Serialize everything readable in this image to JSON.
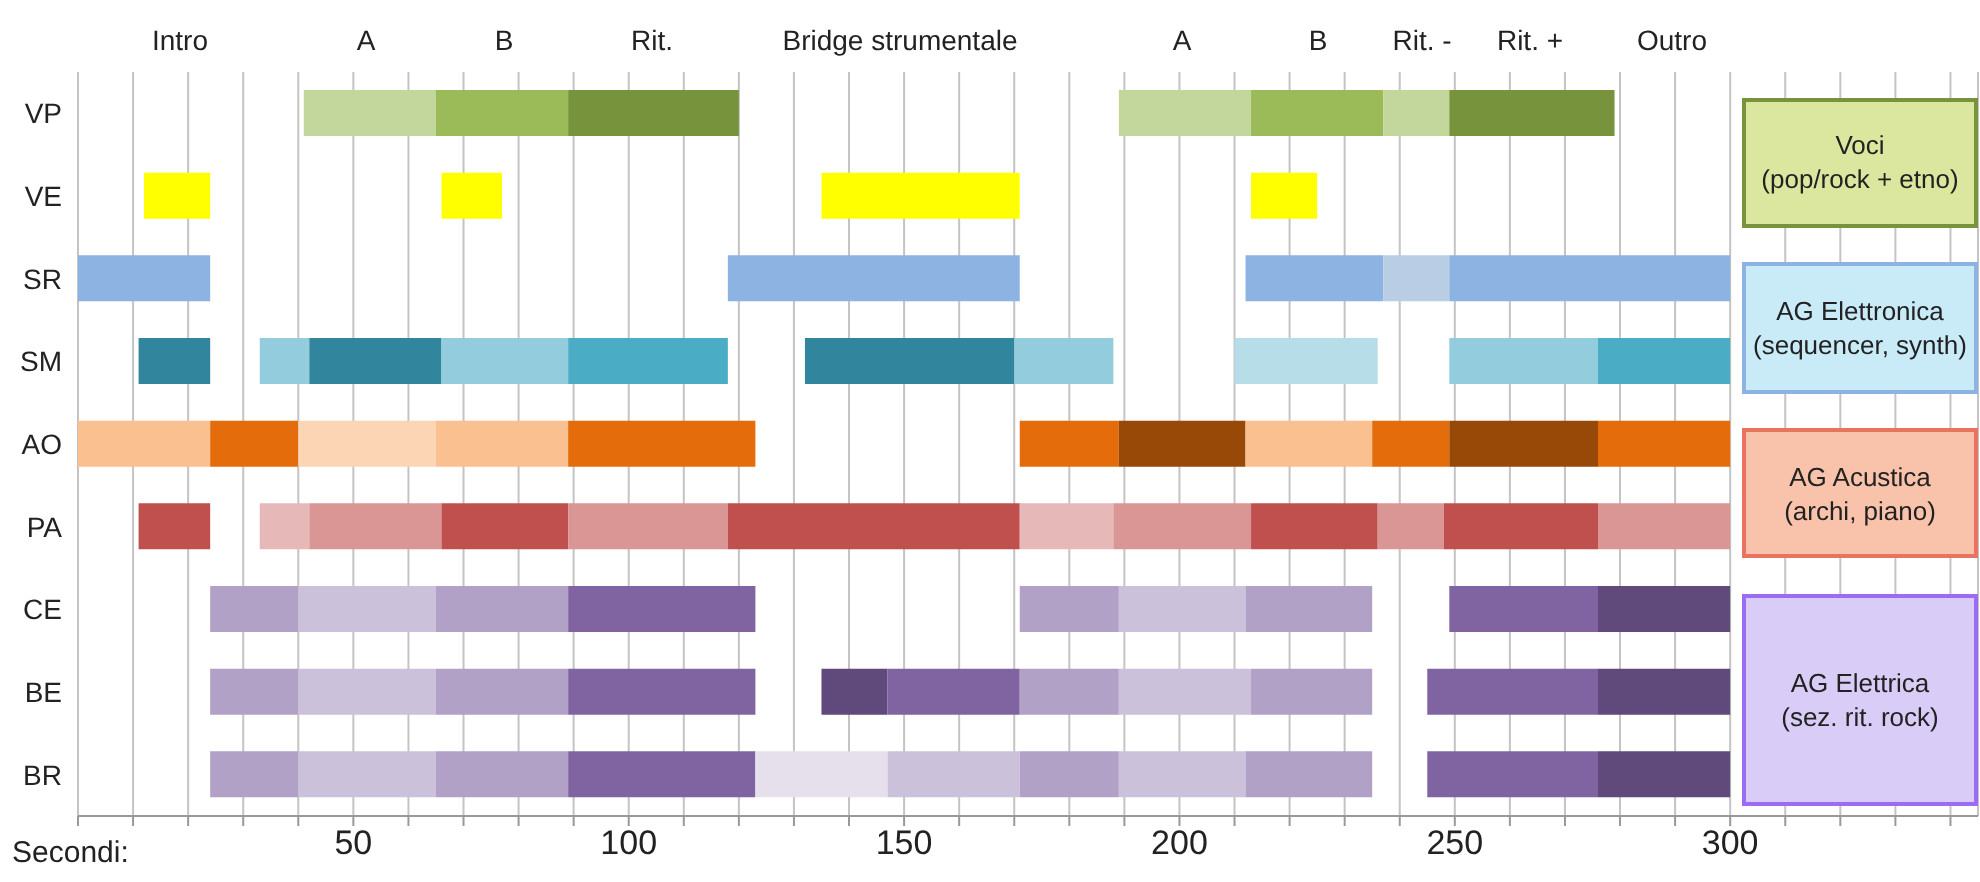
{
  "chart_data": {
    "type": "bar",
    "orientation": "horizontal",
    "xlabel": "Secondi:",
    "categories": [
      "VP",
      "VE",
      "SR",
      "SM",
      "AO",
      "PA",
      "CE",
      "BE",
      "BR"
    ],
    "series": [
      {
        "base": [
          41,
          12,
          0,
          11,
          0,
          11,
          24,
          24,
          24
        ],
        "values": [
          24,
          12,
          24,
          13,
          24,
          13,
          16,
          16,
          16
        ],
        "colors": [
          "#c3d69b",
          "#ffff00",
          "#8db3e2",
          "#31859c",
          "#fac090",
          "#c0504d",
          "#b2a1c7",
          "#b2a1c7",
          "#b2a1c7"
        ]
      },
      {
        "base": [
          65,
          66,
          118,
          33,
          24,
          33,
          40,
          40,
          40
        ],
        "values": [
          24,
          11,
          53,
          9,
          16,
          9,
          25,
          25,
          25
        ],
        "colors": [
          "#9bbb59",
          "#ffff00",
          "#8db3e2",
          "#93cddd",
          "#e46c0a",
          "#e6b9b8",
          "#ccc1da",
          "#ccc1da",
          "#ccc1da"
        ]
      },
      {
        "base": [
          89,
          135,
          212,
          42,
          40,
          42,
          65,
          65,
          65
        ],
        "values": [
          31,
          36,
          25,
          24,
          25,
          24,
          24,
          24,
          24
        ],
        "colors": [
          "#77933c",
          "#ffff00",
          "#8db3e2",
          "#31859c",
          "#fcd5b5",
          "#d99694",
          "#b2a1c7",
          "#b2a1c7",
          "#b2a1c7"
        ]
      },
      {
        "base": [
          189,
          213,
          237,
          66,
          65,
          66,
          89,
          89,
          89
        ],
        "values": [
          24,
          12,
          12,
          23,
          24,
          23,
          34,
          34,
          34
        ],
        "colors": [
          "#c3d69b",
          "#ffff00",
          "#b9cde5",
          "#93cddd",
          "#fac090",
          "#c0504d",
          "#8064a2",
          "#8064a2",
          "#8064a2"
        ]
      },
      {
        "base": [
          213,
          null,
          249,
          89,
          89,
          89,
          171,
          135,
          123
        ],
        "values": [
          24,
          null,
          51,
          29,
          34,
          29,
          18,
          12,
          24
        ],
        "colors": [
          "#9bbb59",
          null,
          "#8db3e2",
          "#4bacc6",
          "#e46c0a",
          "#d99694",
          "#b2a1c7",
          "#604a7b",
          "#e5e0ec"
        ]
      },
      {
        "base": [
          237,
          null,
          null,
          132,
          171,
          118,
          189,
          147,
          147
        ],
        "values": [
          12,
          null,
          null,
          38,
          18,
          53,
          23,
          24,
          24
        ],
        "colors": [
          "#c3d69b",
          null,
          null,
          "#31859c",
          "#e46c0a",
          "#c0504d",
          "#ccc1da",
          "#8064a2",
          "#ccc1da"
        ]
      },
      {
        "base": [
          249,
          null,
          null,
          170,
          189,
          171,
          212,
          171,
          171
        ],
        "values": [
          30,
          null,
          null,
          18,
          23,
          17,
          23,
          18,
          18
        ],
        "colors": [
          "#77933c",
          null,
          null,
          "#93cddd",
          "#984807",
          "#e6b9b8",
          "#b2a1c7",
          "#b2a1c7",
          "#b2a1c7"
        ]
      },
      {
        "base": [
          null,
          null,
          null,
          210,
          212,
          188,
          249,
          189,
          189
        ],
        "values": [
          null,
          null,
          null,
          26,
          23,
          25,
          27,
          24,
          23
        ],
        "colors": [
          null,
          null,
          null,
          "#b7dee8",
          "#fac090",
          "#d99694",
          "#8064a2",
          "#ccc1da",
          "#ccc1da"
        ]
      },
      {
        "base": [
          null,
          null,
          null,
          249,
          235,
          213,
          276,
          213,
          212
        ],
        "values": [
          null,
          null,
          null,
          27,
          14,
          23,
          24,
          22,
          23
        ],
        "colors": [
          null,
          null,
          null,
          "#93cddd",
          "#e46c0a",
          "#c0504d",
          "#604a7b",
          "#b2a1c7",
          "#b2a1c7"
        ]
      },
      {
        "base": [
          null,
          null,
          null,
          276,
          249,
          236,
          null,
          245,
          245
        ],
        "values": [
          null,
          null,
          null,
          24,
          27,
          12,
          null,
          31,
          31
        ],
        "colors": [
          null,
          null,
          null,
          "#4bacc6",
          "#984807",
          "#d99694",
          null,
          "#8064a2",
          "#8064a2"
        ]
      },
      {
        "base": [
          null,
          null,
          null,
          null,
          276,
          248,
          null,
          276,
          276
        ],
        "values": [
          null,
          null,
          null,
          null,
          24,
          28,
          null,
          24,
          24
        ],
        "colors": [
          null,
          null,
          null,
          null,
          "#e46c0a",
          "#c0504d",
          null,
          "#604a7b",
          "#604a7b"
        ]
      },
      {
        "base": [
          null,
          null,
          null,
          null,
          null,
          276,
          null,
          null,
          null
        ],
        "values": [
          null,
          null,
          null,
          null,
          null,
          24,
          null,
          null,
          null
        ],
        "colors": [
          null,
          null,
          null,
          null,
          null,
          "#d99694",
          null,
          null,
          null
        ]
      }
    ],
    "xlim": [
      0,
      345
    ],
    "xticks": [
      {
        "value": 0,
        "label": null
      },
      {
        "value": 10,
        "label": null
      },
      {
        "value": 20,
        "label": null
      },
      {
        "value": 30,
        "label": null
      },
      {
        "value": 40,
        "label": null
      },
      50,
      {
        "value": 60,
        "label": null
      },
      {
        "value": 70,
        "label": null
      },
      {
        "value": 80,
        "label": null
      },
      {
        "value": 90,
        "label": null
      },
      100,
      {
        "value": 110,
        "label": null
      },
      {
        "value": 120,
        "label": null
      },
      {
        "value": 130,
        "label": null
      },
      {
        "value": 140,
        "label": null
      },
      150,
      {
        "value": 160,
        "label": null
      },
      {
        "value": 170,
        "label": null
      },
      {
        "value": 180,
        "label": null
      },
      {
        "value": 190,
        "label": null
      },
      200,
      {
        "value": 210,
        "label": null
      },
      {
        "value": 220,
        "label": null
      },
      {
        "value": 230,
        "label": null
      },
      {
        "value": 240,
        "label": null
      },
      250,
      {
        "value": 260,
        "label": null
      },
      {
        "value": 270,
        "label": null
      },
      {
        "value": 280,
        "label": null
      },
      {
        "value": 290,
        "label": null
      },
      300,
      {
        "value": 310,
        "label": null
      },
      {
        "value": 320,
        "label": null
      },
      {
        "value": 330,
        "label": null
      },
      {
        "value": 340,
        "label": null
      }
    ],
    "grid": "x",
    "annotations": [
      "Intro",
      "A",
      "B",
      "Rit.",
      "Bridge strumentale",
      "A",
      "B",
      "Rit. -",
      "Rit. +",
      "Outro",
      "Voci\n(pop/rock + etno)",
      "AG Elettronica\n(sequencer, synth)",
      "AG Acustica\n(archi, piano)",
      "AG Elettrica\n(sez. rit. rock)"
    ]
  }
}
